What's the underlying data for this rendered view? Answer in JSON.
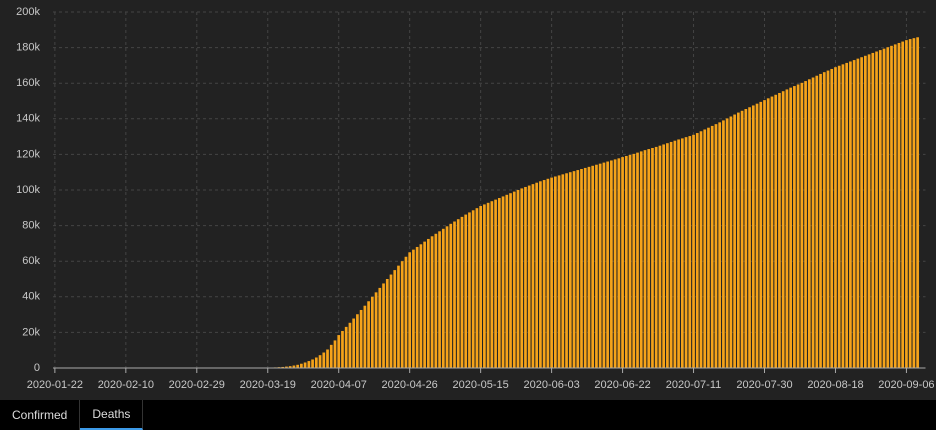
{
  "chart_data": {
    "type": "bar",
    "color": "#f5a31a",
    "grid": true,
    "ylim": [
      0,
      200000
    ],
    "yticks": [
      0,
      {
        "value": 20000,
        "label": "20k"
      },
      {
        "value": 40000,
        "label": "40k"
      },
      {
        "value": 60000,
        "label": "60k"
      },
      {
        "value": 80000,
        "label": "80k"
      },
      {
        "value": 100000,
        "label": "100k"
      },
      {
        "value": 120000,
        "label": "120k"
      },
      {
        "value": 140000,
        "label": "140k"
      },
      {
        "value": 160000,
        "label": "160k"
      },
      {
        "value": 180000,
        "label": "180k"
      },
      {
        "value": 200000,
        "label": "200k"
      }
    ],
    "categories": [
      "2020-01-22",
      null,
      null,
      null,
      null,
      null,
      null,
      null,
      null,
      null,
      null,
      null,
      null,
      null,
      null,
      null,
      null,
      null,
      null,
      "2020-02-10",
      null,
      null,
      null,
      null,
      null,
      null,
      null,
      null,
      null,
      null,
      null,
      null,
      null,
      null,
      null,
      null,
      null,
      null,
      "2020-02-29",
      null,
      null,
      null,
      null,
      null,
      null,
      null,
      null,
      null,
      null,
      null,
      null,
      null,
      null,
      null,
      null,
      null,
      null,
      "2020-03-19",
      null,
      null,
      null,
      null,
      null,
      null,
      null,
      null,
      null,
      null,
      null,
      null,
      null,
      null,
      null,
      null,
      null,
      null,
      "2020-04-07",
      null,
      null,
      null,
      null,
      null,
      null,
      null,
      null,
      null,
      null,
      null,
      null,
      null,
      null,
      null,
      null,
      null,
      null,
      "2020-04-26",
      null,
      null,
      null,
      null,
      null,
      null,
      null,
      null,
      null,
      null,
      null,
      null,
      null,
      null,
      null,
      null,
      null,
      null,
      "2020-05-15",
      null,
      null,
      null,
      null,
      null,
      null,
      null,
      null,
      null,
      null,
      null,
      null,
      null,
      null,
      null,
      null,
      null,
      null,
      "2020-06-03",
      null,
      null,
      null,
      null,
      null,
      null,
      null,
      null,
      null,
      null,
      null,
      null,
      null,
      null,
      null,
      null,
      null,
      null,
      "2020-06-22",
      null,
      null,
      null,
      null,
      null,
      null,
      null,
      null,
      null,
      null,
      null,
      null,
      null,
      null,
      null,
      null,
      null,
      null,
      "2020-07-11",
      null,
      null,
      null,
      null,
      null,
      null,
      null,
      null,
      null,
      null,
      null,
      null,
      null,
      null,
      null,
      null,
      null,
      null,
      "2020-07-30",
      null,
      null,
      null,
      null,
      null,
      null,
      null,
      null,
      null,
      null,
      null,
      null,
      null,
      null,
      null,
      null,
      null,
      null,
      "2020-08-18",
      null,
      null,
      null,
      null,
      null,
      null,
      null,
      null,
      null,
      null,
      null,
      null,
      null,
      null,
      null,
      null,
      null,
      null,
      "2020-09-06",
      null,
      null,
      null
    ],
    "values": [
      0,
      0,
      0,
      0,
      0,
      0,
      0,
      0,
      0,
      0,
      0,
      0,
      0,
      0,
      0,
      0,
      0,
      0,
      0,
      0,
      0,
      0,
      0,
      0,
      0,
      0,
      0,
      0,
      0,
      0,
      0,
      0,
      0,
      0,
      0,
      0,
      0,
      0,
      1,
      1,
      2,
      6,
      9,
      11,
      12,
      15,
      19,
      22,
      26,
      30,
      38,
      41,
      48,
      58,
      73,
      99,
      133,
      205,
      260,
      340,
      470,
      590,
      800,
      1050,
      1400,
      1800,
      2400,
      3100,
      3900,
      4800,
      5900,
      7200,
      8700,
      10400,
      13000,
      15500,
      18500,
      20800,
      23100,
      25400,
      27800,
      30200,
      32600,
      35000,
      37500,
      40000,
      42500,
      45000,
      47500,
      50000,
      52500,
      55000,
      57500,
      60000,
      62500,
      65000,
      66500,
      68000,
      69500,
      71000,
      72500,
      74000,
      75400,
      76800,
      78200,
      79600,
      81000,
      82300,
      83600,
      84900,
      86200,
      87400,
      88600,
      89800,
      91000,
      91900,
      92800,
      93700,
      94600,
      95500,
      96400,
      97300,
      98200,
      99100,
      100000,
      100900,
      101700,
      102500,
      103300,
      104100,
      104900,
      105600,
      106300,
      107000,
      107600,
      108200,
      108800,
      109400,
      110000,
      110600,
      111200,
      111800,
      112400,
      113000,
      113600,
      114200,
      114800,
      115400,
      116000,
      116600,
      117200,
      117800,
      118500,
      119100,
      119700,
      120300,
      121000,
      121700,
      122400,
      123000,
      123600,
      124200,
      124900,
      125600,
      126300,
      127000,
      127700,
      128400,
      129000,
      129700,
      130300,
      131000,
      132000,
      133000,
      134000,
      135000,
      136000,
      137000,
      138000,
      139100,
      140200,
      141300,
      142400,
      143500,
      144500,
      145500,
      146500,
      147500,
      148500,
      149500,
      150500,
      151500,
      152500,
      153500,
      154500,
      155500,
      156500,
      157500,
      158400,
      159300,
      160200,
      161200,
      162200,
      163200,
      164200,
      165200,
      166200,
      167100,
      168000,
      169000,
      169800,
      170600,
      171400,
      172200,
      173000,
      173800,
      174600,
      175400,
      176200,
      177000,
      177800,
      178600,
      179400,
      180200,
      181000,
      181800,
      182600,
      183400,
      184200,
      184800,
      185300,
      185800
    ]
  },
  "tabs": [
    "Confirmed",
    "Deaths"
  ]
}
